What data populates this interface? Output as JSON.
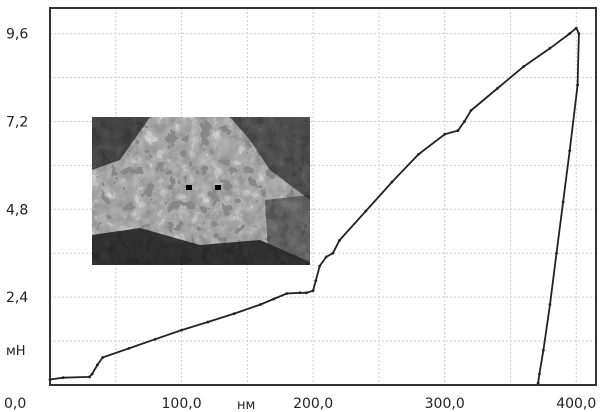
{
  "chart_data": {
    "type": "line",
    "title": "",
    "xlabel": "нм",
    "ylabel": "мН",
    "xlim": [
      0,
      415
    ],
    "ylim": [
      0,
      10.3
    ],
    "grid": true,
    "x_ticks": [
      {
        "value": 0,
        "label": "0,0"
      },
      {
        "value": 100,
        "label": "100,0"
      },
      {
        "value": 200,
        "label": "200,0"
      },
      {
        "value": 300,
        "label": "300,0"
      },
      {
        "value": 400,
        "label": "400,0"
      }
    ],
    "y_ticks": [
      {
        "value": 0,
        "label": "0"
      },
      {
        "value": 2.4,
        "label": "2,4"
      },
      {
        "value": 4.8,
        "label": "4,8"
      },
      {
        "value": 7.2,
        "label": "7,2"
      },
      {
        "value": 9.6,
        "label": "9,6"
      }
    ],
    "series": [
      {
        "name": "",
        "color": "#222222",
        "x": [
          0,
          10,
          30,
          32,
          36,
          40,
          60,
          80,
          100,
          120,
          140,
          160,
          170,
          180,
          190,
          195,
          200,
          202,
          205,
          210,
          215,
          220,
          240,
          260,
          280,
          300,
          310,
          315,
          320,
          340,
          360,
          380,
          395,
          400,
          402,
          401,
          395,
          390,
          385,
          380,
          375,
          372,
          371
        ],
        "y": [
          0.15,
          0.2,
          0.22,
          0.3,
          0.55,
          0.75,
          1.0,
          1.25,
          1.5,
          1.72,
          1.95,
          2.2,
          2.35,
          2.5,
          2.52,
          2.52,
          2.58,
          2.85,
          3.25,
          3.5,
          3.6,
          3.95,
          4.75,
          5.55,
          6.3,
          6.85,
          6.95,
          7.2,
          7.5,
          8.1,
          8.7,
          9.2,
          9.6,
          9.75,
          9.6,
          8.2,
          6.4,
          5.0,
          3.6,
          2.2,
          0.95,
          0.3,
          0.05
        ]
      }
    ]
  },
  "inset": {
    "icon": "micrograph-image"
  }
}
